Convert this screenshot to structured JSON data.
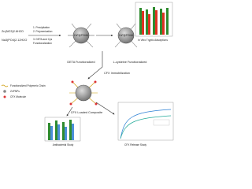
{
  "reagents": [
    "Zn(NO3)2.6H2O",
    "Na3(PO4)2.12H2O"
  ],
  "steps": [
    "1. Precipitation",
    "2. Polymerization",
    "3. DETA and Cys",
    "Functionalization"
  ],
  "particles": {
    "first": {
      "core": "ZnP@PGMA",
      "label": "DETA Functionalized"
    },
    "second": {
      "core": "ZnP@PGMA",
      "label": "L-cysteine Functionalized"
    },
    "loaded": {
      "label": "CFX Loaded Composite"
    }
  },
  "immobilization": "CFX Immobilization",
  "charts": {
    "adsorption": "In Vitro Tryptic Adsorptions",
    "antibacterial": "Antibacterial Study",
    "release": "CFX Release Study"
  },
  "legend": [
    "Functionalized Polymeric Chain",
    "ZnPNPs",
    "CFX Molecule"
  ]
}
